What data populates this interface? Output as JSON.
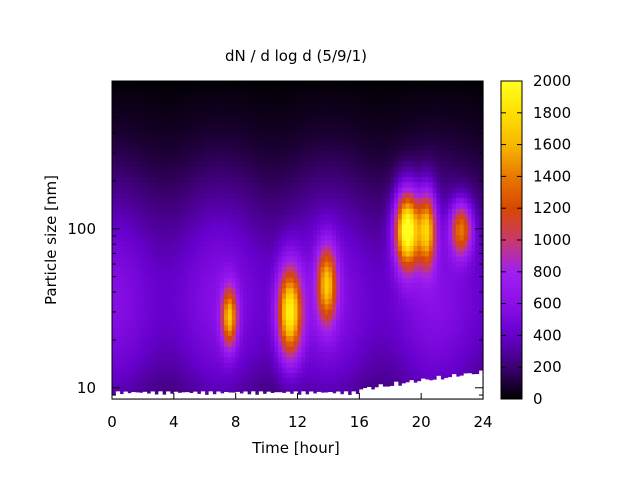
{
  "chart_data": {
    "type": "heatmap",
    "title": "dN / d log d (5/9/1)",
    "xlabel": "Time [hour]",
    "ylabel": "Particle size [nm]",
    "xlim": [
      0,
      24
    ],
    "ylim": [
      8.5,
      850
    ],
    "y_scale": "log",
    "x_ticks": [
      0,
      4,
      8,
      12,
      16,
      20,
      24
    ],
    "x_tick_labels": [
      "0",
      "4",
      "8",
      "12",
      "16",
      "20",
      "24"
    ],
    "y_ticks": [
      10,
      100
    ],
    "y_tick_labels": [
      "10",
      "100"
    ],
    "colorbar": {
      "range": [
        0,
        2000
      ],
      "ticks": [
        0,
        200,
        400,
        600,
        800,
        1000,
        1200,
        1400,
        1600,
        1800,
        2000
      ],
      "tick_labels": [
        "0",
        "200",
        "400",
        "600",
        "800",
        "1000",
        "1200",
        "1400",
        "1600",
        "1800",
        "2000"
      ],
      "palette": [
        "#000000",
        "#3d0073",
        "#6600cc",
        "#8a10e8",
        "#a020f0",
        "#c83a6a",
        "#d84800",
        "#e87800",
        "#f8b800",
        "#ffe000",
        "#ffff20"
      ]
    },
    "background": {
      "level": 580,
      "size_peak_nm": 35,
      "log_width": 0.55
    },
    "events": [
      {
        "time_h": 7.6,
        "diameter_nm": 28,
        "intensity": 1150,
        "time_width_h": 0.35,
        "log_width": 0.13
      },
      {
        "time_h": 11.5,
        "diameter_nm": 30,
        "intensity": 1500,
        "time_width_h": 0.55,
        "log_width": 0.2
      },
      {
        "time_h": 13.9,
        "diameter_nm": 45,
        "intensity": 1150,
        "time_width_h": 0.45,
        "log_width": 0.17
      },
      {
        "time_h": 19.1,
        "diameter_nm": 100,
        "intensity": 1800,
        "time_width_h": 0.55,
        "log_width": 0.17
      },
      {
        "time_h": 20.4,
        "diameter_nm": 100,
        "intensity": 1250,
        "time_width_h": 0.4,
        "log_width": 0.17
      },
      {
        "time_h": 22.6,
        "diameter_nm": 100,
        "intensity": 1050,
        "time_width_h": 0.5,
        "log_width": 0.12
      }
    ]
  }
}
